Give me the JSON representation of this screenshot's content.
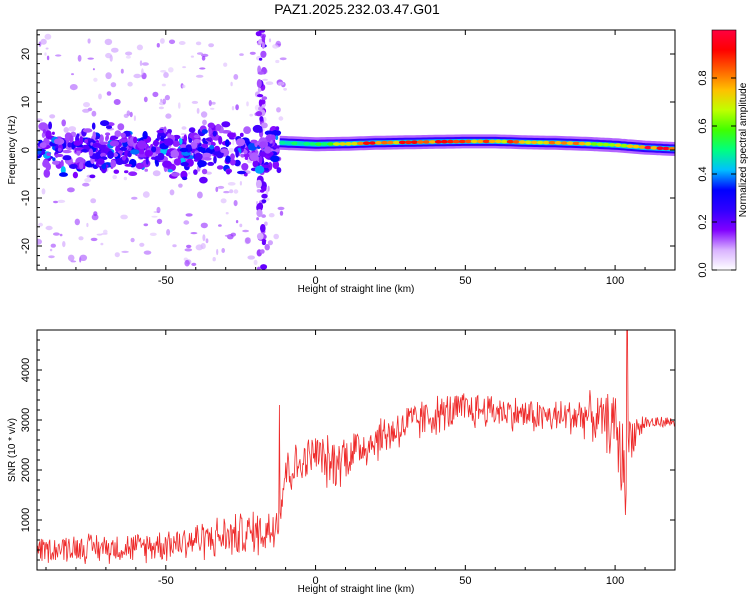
{
  "title": "PAZ1.2025.232.03.47.G01",
  "chart_data": [
    {
      "type": "heatmap",
      "xlabel": "Height of straight line (km)",
      "ylabel": "Frequency (Hz)",
      "xlim": [
        -93,
        120
      ],
      "ylim": [
        -25,
        25
      ],
      "xticks": [
        -50,
        0,
        50,
        100
      ],
      "xtick_labels": [
        "-50",
        "0",
        "50",
        "100"
      ],
      "yticks": [
        -20,
        -10,
        0,
        10,
        20
      ],
      "ytick_labels": [
        "-20",
        "-10",
        "0",
        "10",
        "20"
      ],
      "colorbar": {
        "label": "Normalized spectral amplitude",
        "range": [
          0.0,
          1.0
        ],
        "ticks": [
          0.0,
          0.2,
          0.4,
          0.6,
          0.8
        ],
        "tick_labels": [
          "0.0",
          "0.2",
          "0.4",
          "0.6",
          "0.8"
        ],
        "colors": [
          "#ffffff",
          "#d9b3ff",
          "#8000ff",
          "#3000ff",
          "#0000ff",
          "#00c0ff",
          "#00ff80",
          "#40ff00",
          "#c0ff00",
          "#ffc000",
          "#ff6000",
          "#ff0000",
          "#ff0040"
        ]
      },
      "ridge": {
        "x": [
          -12,
          0,
          10,
          20,
          30,
          40,
          50,
          60,
          70,
          80,
          90,
          100,
          110,
          120
        ],
        "freq": [
          1.5,
          1.2,
          1.3,
          1.5,
          1.6,
          1.7,
          1.8,
          1.8,
          1.6,
          1.5,
          1.3,
          1.0,
          0.5,
          0.2
        ],
        "amplitude": [
          0.45,
          0.55,
          0.75,
          0.9,
          0.9,
          0.85,
          0.8,
          0.85,
          0.8,
          0.8,
          0.75,
          0.7,
          0.9,
          0.9
        ]
      },
      "noise_region": {
        "x_range": [
          -93,
          -12
        ],
        "freq_range": [
          -8,
          8
        ],
        "typical_amplitude": 0.3
      },
      "vertical_streak": {
        "x": -18,
        "freq_range": [
          -25,
          25
        ]
      }
    },
    {
      "type": "line",
      "xlabel": "Height of straight line (km)",
      "ylabel": "SNR (10 * v/v)",
      "xlim": [
        -93,
        120
      ],
      "ylim": [
        0,
        4800
      ],
      "xticks": [
        -50,
        0,
        50,
        100
      ],
      "xtick_labels": [
        "-50",
        "0",
        "50",
        "100"
      ],
      "yticks": [
        1000,
        2000,
        3000,
        4000
      ],
      "ytick_labels": [
        "1000",
        "2000",
        "3000",
        "4000"
      ],
      "color": "#ee2a2a",
      "envelope": {
        "x": [
          -93,
          -80,
          -60,
          -40,
          -25,
          -15,
          -12,
          -10,
          -5,
          0,
          5,
          10,
          20,
          30,
          40,
          50,
          60,
          70,
          80,
          90,
          95,
          100,
          103,
          105,
          110,
          120
        ],
        "center": [
          400,
          450,
          450,
          600,
          700,
          800,
          1200,
          2000,
          2100,
          2350,
          2100,
          2300,
          2600,
          2900,
          3100,
          3200,
          3200,
          3100,
          3050,
          3100,
          3000,
          2900,
          2000,
          2700,
          2950,
          2950
        ],
        "spread": [
          250,
          300,
          300,
          400,
          450,
          500,
          600,
          600,
          400,
          450,
          550,
          550,
          450,
          450,
          400,
          400,
          350,
          350,
          350,
          450,
          500,
          700,
          1100,
          500,
          150,
          100
        ]
      },
      "notable_values": [
        {
          "x": -12,
          "y": 3300
        },
        {
          "x": 103.5,
          "y": 1100
        },
        {
          "x": 104,
          "y": 4800
        }
      ]
    }
  ]
}
